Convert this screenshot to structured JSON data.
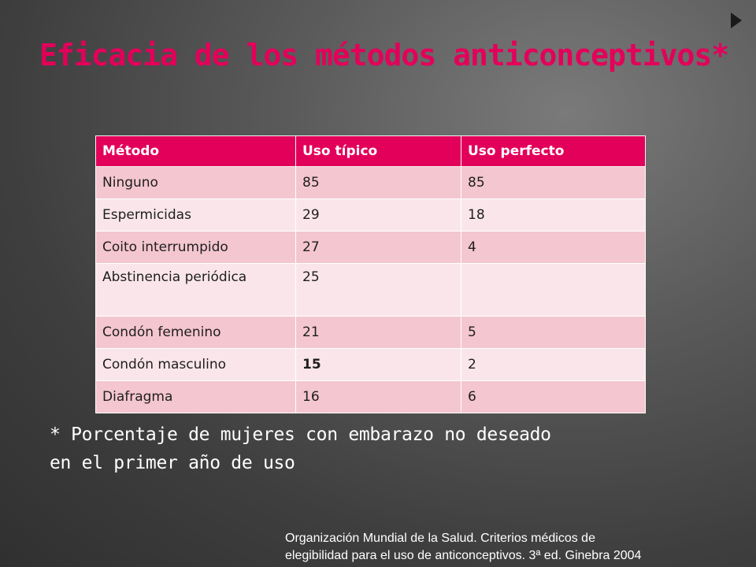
{
  "slide": {
    "title": "Eficacia de los métodos anticonceptivos*",
    "footnote_line1": "* Porcentaje de mujeres con embarazo no deseado",
    "footnote_line2": "en el primer año de uso",
    "source_line1": "Organización Mundial de la Salud. Criterios médicos de",
    "source_line2": "elegibilidad para el uso de anticonceptivos. 3ª ed. Ginebra 2004",
    "accent_color": "#e2005a",
    "background_color": "#4a4a4a",
    "bullet_icon": "triangle-right-icon"
  },
  "table": {
    "headers": [
      "Método",
      "Uso típico",
      "Uso perfecto"
    ],
    "rows": [
      [
        "Ninguno",
        "85",
        "85"
      ],
      [
        "Espermicidas",
        "29",
        "18"
      ],
      [
        "Coito interrumpido",
        "27",
        "4"
      ],
      [
        "Abstinencia periódica",
        "25",
        ""
      ],
      [
        "Condón femenino",
        "21",
        "5"
      ],
      [
        "Condón masculino",
        "15",
        "2"
      ],
      [
        "Diafragma",
        "16",
        "6"
      ]
    ]
  }
}
